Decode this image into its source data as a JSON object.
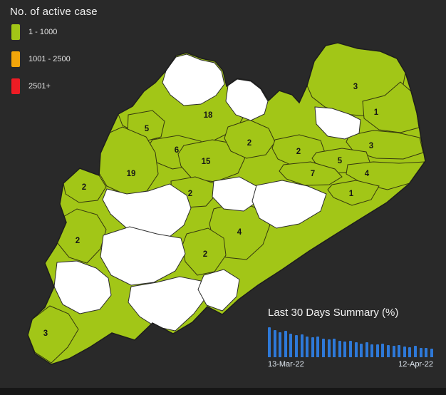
{
  "header": {
    "title": "No. of active case"
  },
  "legend": {
    "items": [
      {
        "label": "1 - 1000",
        "color": "#a2c617"
      },
      {
        "label": "1001 - 2500",
        "color": "#f2a50a"
      },
      {
        "label": "2501+",
        "color": "#ed1c24"
      }
    ]
  },
  "map": {
    "shaded_color": "#a2c617",
    "unshaded_color": "#ffffff",
    "districts": [
      {
        "label": "18"
      },
      {
        "label": "5"
      },
      {
        "label": "6"
      },
      {
        "label": "15"
      },
      {
        "label": "2"
      },
      {
        "label": "2"
      },
      {
        "label": "3"
      },
      {
        "label": "1"
      },
      {
        "label": "3"
      },
      {
        "label": "5"
      },
      {
        "label": "4"
      },
      {
        "label": "7"
      },
      {
        "label": "1"
      },
      {
        "label": "19"
      },
      {
        "label": "2"
      },
      {
        "label": "2"
      },
      {
        "label": "4"
      },
      {
        "label": "2"
      },
      {
        "label": "2"
      },
      {
        "label": "3"
      }
    ]
  },
  "chart_data": {
    "type": "bar",
    "title": "Last 30 Days Summary (%)",
    "x_axis": {
      "start_label": "13-Mar-22",
      "end_label": "12-Apr-22"
    },
    "ylim": [
      0,
      100
    ],
    "bar_color": "#2e79d8",
    "values": [
      100,
      90,
      84,
      87,
      79,
      74,
      77,
      70,
      66,
      69,
      63,
      59,
      61,
      55,
      52,
      55,
      49,
      46,
      49,
      44,
      42,
      45,
      40,
      38,
      41,
      36,
      34,
      37,
      32,
      30,
      28
    ]
  }
}
